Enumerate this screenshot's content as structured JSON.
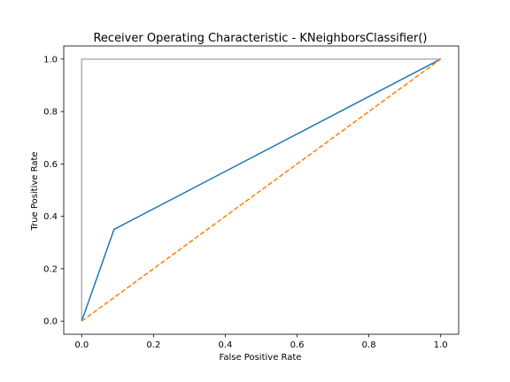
{
  "chart_data": {
    "type": "line",
    "title": "Receiver Operating Characteristic - KNeighborsClassifier()",
    "xlabel": "False Positive Rate",
    "ylabel": "True Positive Rate",
    "xlim": [
      -0.05,
      1.05
    ],
    "ylim": [
      -0.05,
      1.05
    ],
    "xticks": [
      "0.0",
      "0.2",
      "0.4",
      "0.6",
      "0.8",
      "1.0"
    ],
    "yticks": [
      "0.0",
      "0.2",
      "0.4",
      "0.6",
      "0.8",
      "1.0"
    ],
    "grid": false,
    "legend": "none",
    "series": [
      {
        "x": [
          0.0,
          0.0,
          1.0
        ],
        "y": [
          0.0,
          1.0,
          1.0
        ],
        "color": "#b0b0b0",
        "style": "solid"
      },
      {
        "x": [
          0.0,
          0.0,
          0.09,
          1.0
        ],
        "y": [
          0.0,
          0.0,
          0.35,
          1.0
        ],
        "color": "#1f77b4",
        "style": "solid"
      },
      {
        "x": [
          0.0,
          1.0
        ],
        "y": [
          0.0,
          1.0
        ],
        "color": "#ff7f0e",
        "style": "dashed"
      }
    ]
  }
}
